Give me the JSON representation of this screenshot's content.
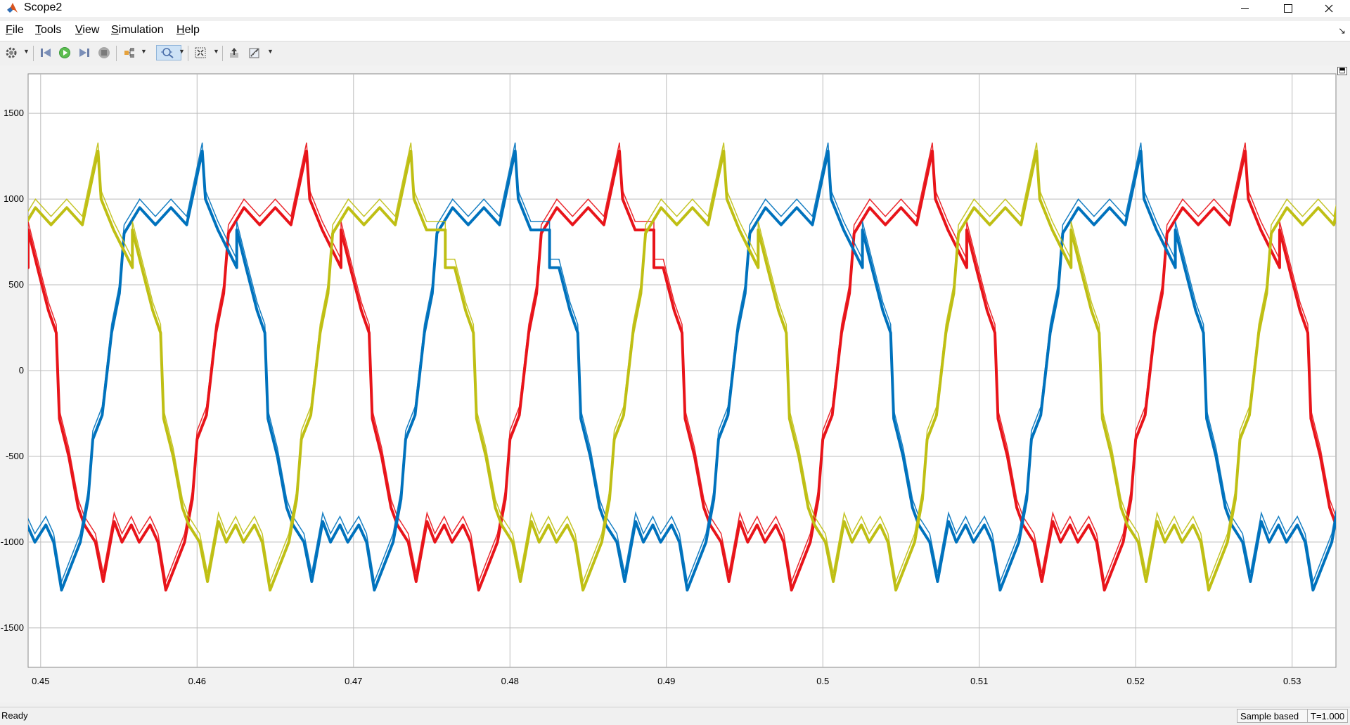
{
  "window": {
    "title": "Scope2",
    "minimize": "—",
    "maximize": "☐",
    "close": "✕"
  },
  "menubar": {
    "items": [
      {
        "mnemonic": "F",
        "rest": "ile"
      },
      {
        "mnemonic": "T",
        "rest": "ools"
      },
      {
        "mnemonic": "V",
        "rest": "iew"
      },
      {
        "mnemonic": "S",
        "rest": "imulation"
      },
      {
        "mnemonic": "H",
        "rest": "elp"
      }
    ],
    "dock_icon": "↘"
  },
  "toolbar": {
    "icons": [
      "settings-icon",
      "step-back-icon",
      "run-icon",
      "step-forward-icon",
      "stop-icon",
      "highlight-icon",
      "zoom-icon",
      "fit-to-view-icon",
      "restore-icon",
      "measurement-icon"
    ],
    "active": "zoom-icon"
  },
  "axes": {
    "expand_icon": "⬒"
  },
  "chart_data": {
    "type": "line",
    "title": "",
    "xlabel": "",
    "ylabel": "",
    "xlim": [
      0.4492,
      0.5328
    ],
    "ylim": [
      -1730,
      1730
    ],
    "xticks": [
      "0.45",
      "0.46",
      "0.47",
      "0.48",
      "0.49",
      "0.5",
      "0.51",
      "0.52",
      "0.53"
    ],
    "xtick_values": [
      0.45,
      0.46,
      0.47,
      0.48,
      0.49,
      0.5,
      0.51,
      0.52,
      0.53
    ],
    "yticks": [
      "1500",
      "1000",
      "500",
      "0",
      "-500",
      "-1000",
      "-1500"
    ],
    "ytick_values": [
      1500,
      1000,
      500,
      0,
      -500,
      -1000,
      -1500
    ],
    "grid": true,
    "background": "#ffffff",
    "grid_color": "#bdbdbd",
    "period": 0.02,
    "series": [
      {
        "color": "#e8141a",
        "phase_shift": 0.0,
        "x": [
          0.4492,
          0.4498,
          0.4505,
          0.451,
          0.4512,
          0.4518,
          0.4524,
          0.4528,
          0.4535,
          0.454,
          0.4547,
          0.4552,
          0.4558,
          0.4563,
          0.457,
          0.4575,
          0.458,
          0.4592,
          0.4597,
          0.46,
          0.4606,
          0.4612,
          0.4617,
          0.462,
          0.463,
          0.464,
          0.465,
          0.466,
          0.467,
          0.4672,
          0.468,
          0.4692
        ],
        "y": [
          820,
          600,
          350,
          220,
          -280,
          -500,
          -800,
          -900,
          -1000,
          -1230,
          -880,
          -1000,
          -900,
          -1000,
          -900,
          -1000,
          -1280,
          -1000,
          -750,
          -400,
          -260,
          220,
          450,
          800,
          950,
          850,
          950,
          850,
          1280,
          1000,
          820,
          600
        ]
      }
    ]
  }
}
